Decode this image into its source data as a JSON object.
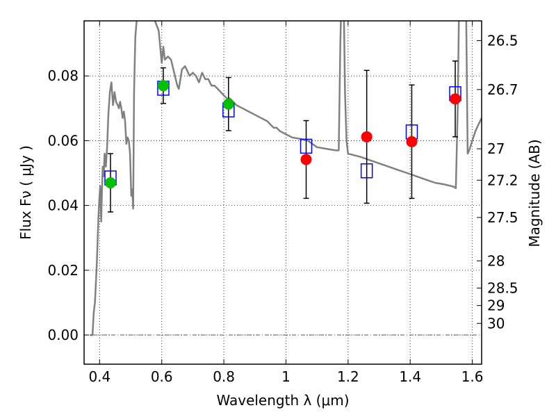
{
  "chart_data": {
    "type": "scatter",
    "xlabel": "Wavelength  λ (μm)",
    "ylabel": "Flux  Fν  ( μJy )",
    "ylabel_right": "Magnitude (AB)",
    "xlim": [
      0.35,
      1.63
    ],
    "ylim": [
      -0.009,
      0.097
    ],
    "grid": true,
    "x_ticks": [
      0.4,
      0.6,
      0.8,
      1.0,
      1.2,
      1.4,
      1.6
    ],
    "x_tick_labels": [
      "0.4",
      "0.6",
      "0.8",
      "1",
      "1.2",
      "1.4",
      "1.6"
    ],
    "y_ticks": [
      0.0,
      0.02,
      0.04,
      0.06,
      0.08
    ],
    "y_tick_labels": [
      "0.00",
      "0.02",
      "0.04",
      "0.06",
      "0.08"
    ],
    "mag_ticks": [
      {
        "label": "26.5",
        "flux": 0.0909
      },
      {
        "label": "26.7",
        "flux": 0.0758
      },
      {
        "label": "27",
        "flux": 0.0575
      },
      {
        "label": "27.2",
        "flux": 0.0478
      },
      {
        "label": "27.5",
        "flux": 0.0363
      },
      {
        "label": "28",
        "flux": 0.0229
      },
      {
        "label": "28.5",
        "flux": 0.0145
      },
      {
        "label": "29",
        "flux": 0.0091
      },
      {
        "label": "30",
        "flux": 0.0036
      }
    ],
    "zero_line": 0.0,
    "model_color": "#808080",
    "model_sed": [
      [
        0.37,
        0.0
      ],
      [
        0.377,
        0.0
      ],
      [
        0.381,
        0.007
      ],
      [
        0.385,
        0.01
      ],
      [
        0.391,
        0.022
      ],
      [
        0.396,
        0.036
      ],
      [
        0.399,
        0.042
      ],
      [
        0.402,
        0.046
      ],
      [
        0.405,
        0.035
      ],
      [
        0.407,
        0.043
      ],
      [
        0.41,
        0.052
      ],
      [
        0.413,
        0.049
      ],
      [
        0.416,
        0.056
      ],
      [
        0.42,
        0.052
      ],
      [
        0.424,
        0.058
      ],
      [
        0.428,
        0.068
      ],
      [
        0.433,
        0.075
      ],
      [
        0.438,
        0.078
      ],
      [
        0.443,
        0.071
      ],
      [
        0.448,
        0.075
      ],
      [
        0.453,
        0.072
      ],
      [
        0.458,
        0.071
      ],
      [
        0.462,
        0.07
      ],
      [
        0.466,
        0.072
      ],
      [
        0.47,
        0.07
      ],
      [
        0.474,
        0.067
      ],
      [
        0.478,
        0.069
      ],
      [
        0.482,
        0.066
      ],
      [
        0.486,
        0.059
      ],
      [
        0.49,
        0.061
      ],
      [
        0.494,
        0.06
      ],
      [
        0.498,
        0.056
      ],
      [
        0.502,
        0.043
      ],
      [
        0.505,
        0.045
      ],
      [
        0.508,
        0.039
      ],
      [
        0.511,
        0.075
      ],
      [
        0.515,
        0.092
      ],
      [
        0.52,
        0.098
      ],
      [
        0.53,
        0.1
      ],
      [
        0.55,
        0.1
      ],
      [
        0.57,
        0.099
      ],
      [
        0.59,
        0.094
      ],
      [
        0.6,
        0.084
      ],
      [
        0.605,
        0.089
      ],
      [
        0.61,
        0.085
      ],
      [
        0.62,
        0.086
      ],
      [
        0.63,
        0.085
      ],
      [
        0.64,
        0.081
      ],
      [
        0.65,
        0.077
      ],
      [
        0.655,
        0.076
      ],
      [
        0.665,
        0.082
      ],
      [
        0.675,
        0.083
      ],
      [
        0.68,
        0.082
      ],
      [
        0.69,
        0.08
      ],
      [
        0.7,
        0.081
      ],
      [
        0.71,
        0.08
      ],
      [
        0.72,
        0.078
      ],
      [
        0.73,
        0.081
      ],
      [
        0.74,
        0.079
      ],
      [
        0.75,
        0.079
      ],
      [
        0.76,
        0.077
      ],
      [
        0.77,
        0.077
      ],
      [
        0.78,
        0.076
      ],
      [
        0.79,
        0.075
      ],
      [
        0.8,
        0.074
      ],
      [
        0.81,
        0.073
      ],
      [
        0.82,
        0.073
      ],
      [
        0.83,
        0.072
      ],
      [
        0.84,
        0.071
      ],
      [
        0.86,
        0.07
      ],
      [
        0.88,
        0.069
      ],
      [
        0.9,
        0.068
      ],
      [
        0.92,
        0.067
      ],
      [
        0.94,
        0.066
      ],
      [
        0.96,
        0.064
      ],
      [
        0.97,
        0.064
      ],
      [
        0.98,
        0.063
      ],
      [
        1.0,
        0.062
      ],
      [
        1.02,
        0.061
      ],
      [
        1.05,
        0.0605
      ],
      [
        1.07,
        0.06
      ],
      [
        1.1,
        0.058
      ],
      [
        1.13,
        0.0575
      ],
      [
        1.16,
        0.057
      ],
      [
        1.17,
        0.057
      ],
      [
        1.175,
        0.09
      ],
      [
        1.18,
        0.11
      ],
      [
        1.185,
        0.11
      ],
      [
        1.19,
        0.075
      ],
      [
        1.195,
        0.06
      ],
      [
        1.2,
        0.056
      ],
      [
        1.22,
        0.0555
      ],
      [
        1.24,
        0.055
      ],
      [
        1.27,
        0.054
      ],
      [
        1.3,
        0.053
      ],
      [
        1.33,
        0.052
      ],
      [
        1.36,
        0.051
      ],
      [
        1.39,
        0.05
      ],
      [
        1.42,
        0.049
      ],
      [
        1.45,
        0.048
      ],
      [
        1.48,
        0.047
      ],
      [
        1.51,
        0.0465
      ],
      [
        1.54,
        0.0458
      ],
      [
        1.547,
        0.0453
      ],
      [
        1.553,
        0.07
      ],
      [
        1.557,
        0.1
      ],
      [
        1.575,
        0.1
      ],
      [
        1.58,
        0.1
      ],
      [
        1.585,
        0.056
      ],
      [
        1.59,
        0.057
      ],
      [
        1.6,
        0.06
      ],
      [
        1.61,
        0.063
      ],
      [
        1.62,
        0.065
      ],
      [
        1.63,
        0.067
      ]
    ],
    "points": [
      {
        "x": 0.435,
        "y": 0.047,
        "yerr_low": 0.009,
        "yerr_high": 0.009,
        "color": "#00c000",
        "model": 0.0485
      },
      {
        "x": 0.605,
        "y": 0.077,
        "yerr_low": 0.0055,
        "yerr_high": 0.0055,
        "color": "#00c000",
        "model": 0.0762
      },
      {
        "x": 0.815,
        "y": 0.0713,
        "yerr_low": 0.0082,
        "yerr_high": 0.0082,
        "color": "#00c000",
        "model": 0.0695
      },
      {
        "x": 1.065,
        "y": 0.0542,
        "yerr_low": 0.012,
        "yerr_high": 0.012,
        "color": "#ff0000",
        "model": 0.0583
      },
      {
        "x": 1.26,
        "y": 0.0612,
        "yerr_low": 0.0205,
        "yerr_high": 0.0205,
        "color": "#ff0000",
        "model": 0.0507
      },
      {
        "x": 1.405,
        "y": 0.0597,
        "yerr_low": 0.0175,
        "yerr_high": 0.0175,
        "color": "#ff0000",
        "model": 0.0627
      },
      {
        "x": 1.545,
        "y": 0.0729,
        "yerr_low": 0.0117,
        "yerr_high": 0.0117,
        "color": "#ff0000",
        "model": 0.0745
      }
    ],
    "model_marker_color": "#0000ff"
  }
}
